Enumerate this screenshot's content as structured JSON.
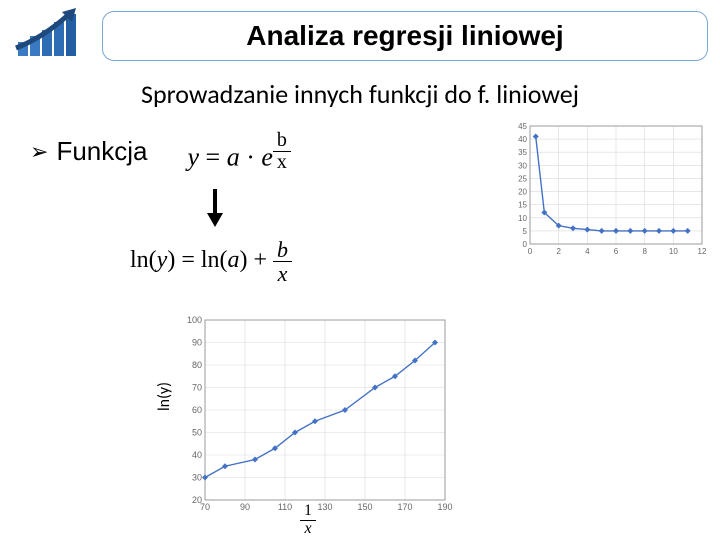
{
  "header": {
    "title": "Analiza regresji liniowej"
  },
  "subtitle": "Sprowadzanie innych funkcji do f. liniowej",
  "bullet": {
    "marker": "➢",
    "label": "Funkcja"
  },
  "eq1": {
    "lhs": "y = a · e",
    "frac_num": "b",
    "frac_den": "x"
  },
  "eq2": {
    "part1": "ln(y) = ln(a) + ",
    "frac_num": "b",
    "frac_den": "x"
  },
  "chart_right": {
    "type": "line",
    "x": [
      0.4,
      1,
      2,
      3,
      4,
      5,
      6,
      7,
      8,
      9,
      10,
      11
    ],
    "y": [
      41,
      12,
      7,
      6,
      5.5,
      5,
      5,
      5,
      5,
      5,
      5,
      5
    ],
    "xlim": [
      0,
      12
    ],
    "ylim": [
      0,
      45
    ],
    "xticks": [
      0,
      2,
      4,
      6,
      8,
      10,
      12
    ],
    "yticks": [
      0,
      5,
      10,
      15,
      20,
      25,
      30,
      35,
      40,
      45
    ],
    "line_color": "#4472c4",
    "marker_color": "#4472c4",
    "marker": "diamond",
    "grid_color": "#d9d9d9",
    "axis_color": "#888888",
    "tick_fontsize": 8
  },
  "chart_bottom": {
    "type": "scatter-line",
    "x": [
      70,
      80,
      95,
      105,
      115,
      125,
      140,
      155,
      165,
      175,
      185
    ],
    "y": [
      30,
      35,
      38,
      43,
      50,
      55,
      60,
      70,
      75,
      82,
      90
    ],
    "xlim": [
      70,
      190
    ],
    "ylim": [
      20,
      100
    ],
    "xticks": [
      70,
      90,
      110,
      130,
      150,
      170,
      190
    ],
    "yticks": [
      20,
      30,
      40,
      50,
      60,
      70,
      80,
      90,
      100
    ],
    "line_color": "#4472c4",
    "marker_color": "#4472c4",
    "marker": "diamond",
    "grid_color": "#d9d9d9",
    "axis_color": "#888888",
    "tick_fontsize": 9,
    "ylabel": "ln(y)",
    "xlabel_num": "1",
    "xlabel_den": "x"
  },
  "logo": {
    "bars": [
      "#3a7ac2",
      "#3a7ac2",
      "#2e6db3",
      "#2e6db3",
      "#255fa3"
    ],
    "arrow": "#1f497d"
  }
}
